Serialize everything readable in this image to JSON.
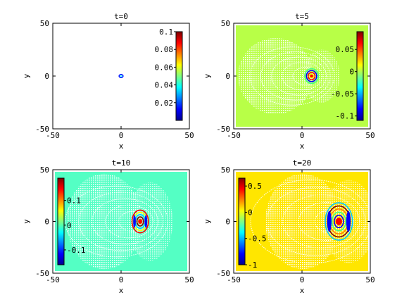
{
  "chart_data": [
    {
      "type": "heatmap",
      "title": "t=0",
      "xlabel": "x",
      "ylabel": "y",
      "xlim": [
        -50,
        50
      ],
      "ylim": [
        -50,
        50
      ],
      "xticks": [
        "-50",
        "0",
        "50"
      ],
      "yticks": [
        "-50",
        "0",
        "50"
      ],
      "colorbar": {
        "position": "right",
        "range": [
          0,
          0.1
        ],
        "ticks": [
          "0.1",
          "0.08",
          "0.06",
          "0.04",
          "0.02"
        ],
        "tick_values": [
          0.1,
          0.08,
          0.06,
          0.04,
          0.02
        ]
      },
      "background_color": "#ffffff",
      "feature": {
        "x": 0,
        "y": 0,
        "width": 3,
        "height": 3,
        "kind": "single-ring"
      },
      "grid": false
    },
    {
      "type": "heatmap",
      "title": "t=5",
      "xlabel": "x",
      "ylabel": "y",
      "xlim": [
        -50,
        50
      ],
      "ylim": [
        -50,
        50
      ],
      "xticks": [
        "-50",
        "0",
        "50"
      ],
      "yticks": [
        "-50",
        "0",
        "50"
      ],
      "colorbar": {
        "position": "right",
        "range": [
          -0.11,
          0.09
        ],
        "ticks": [
          "0.05",
          "0",
          "-0.05",
          "-0.1"
        ],
        "tick_values": [
          0.05,
          0,
          -0.05,
          -0.1
        ]
      },
      "background_color": "#b8ff47",
      "feature": {
        "x": 7,
        "y": 0,
        "width": 10,
        "height": 14,
        "kind": "wave-packet"
      },
      "grid": false
    },
    {
      "type": "heatmap",
      "title": "t=10",
      "xlabel": "x",
      "ylabel": "y",
      "xlim": [
        -50,
        50
      ],
      "ylim": [
        -50,
        50
      ],
      "xticks": [
        "-50",
        "0",
        "50"
      ],
      "yticks": [
        "-50",
        "0",
        "50"
      ],
      "colorbar": {
        "position": "left",
        "range": [
          -0.16,
          0.19
        ],
        "ticks": [
          "0.1",
          "0",
          "-0.1"
        ],
        "tick_values": [
          0.1,
          0,
          -0.1
        ]
      },
      "background_color": "#54ffc4",
      "feature": {
        "x": 14,
        "y": 0,
        "width": 12,
        "height": 22,
        "kind": "wave-packet"
      },
      "grid": false
    },
    {
      "type": "heatmap",
      "title": "t=20",
      "xlabel": "x",
      "ylabel": "y",
      "xlim": [
        -50,
        50
      ],
      "ylim": [
        -50,
        50
      ],
      "xticks": [
        "-50",
        "0",
        "50"
      ],
      "yticks": [
        "-50",
        "0",
        "50"
      ],
      "colorbar": {
        "position": "left",
        "range": [
          -1,
          0.65
        ],
        "ticks": [
          "0.5",
          "0",
          "-0.5",
          "-1"
        ],
        "tick_values": [
          0.5,
          0,
          -0.5,
          -1
        ]
      },
      "background_color": "#ffe600",
      "feature": {
        "x": 27,
        "y": 0,
        "width": 20,
        "height": 36,
        "kind": "wave-packet"
      },
      "grid": false
    }
  ]
}
